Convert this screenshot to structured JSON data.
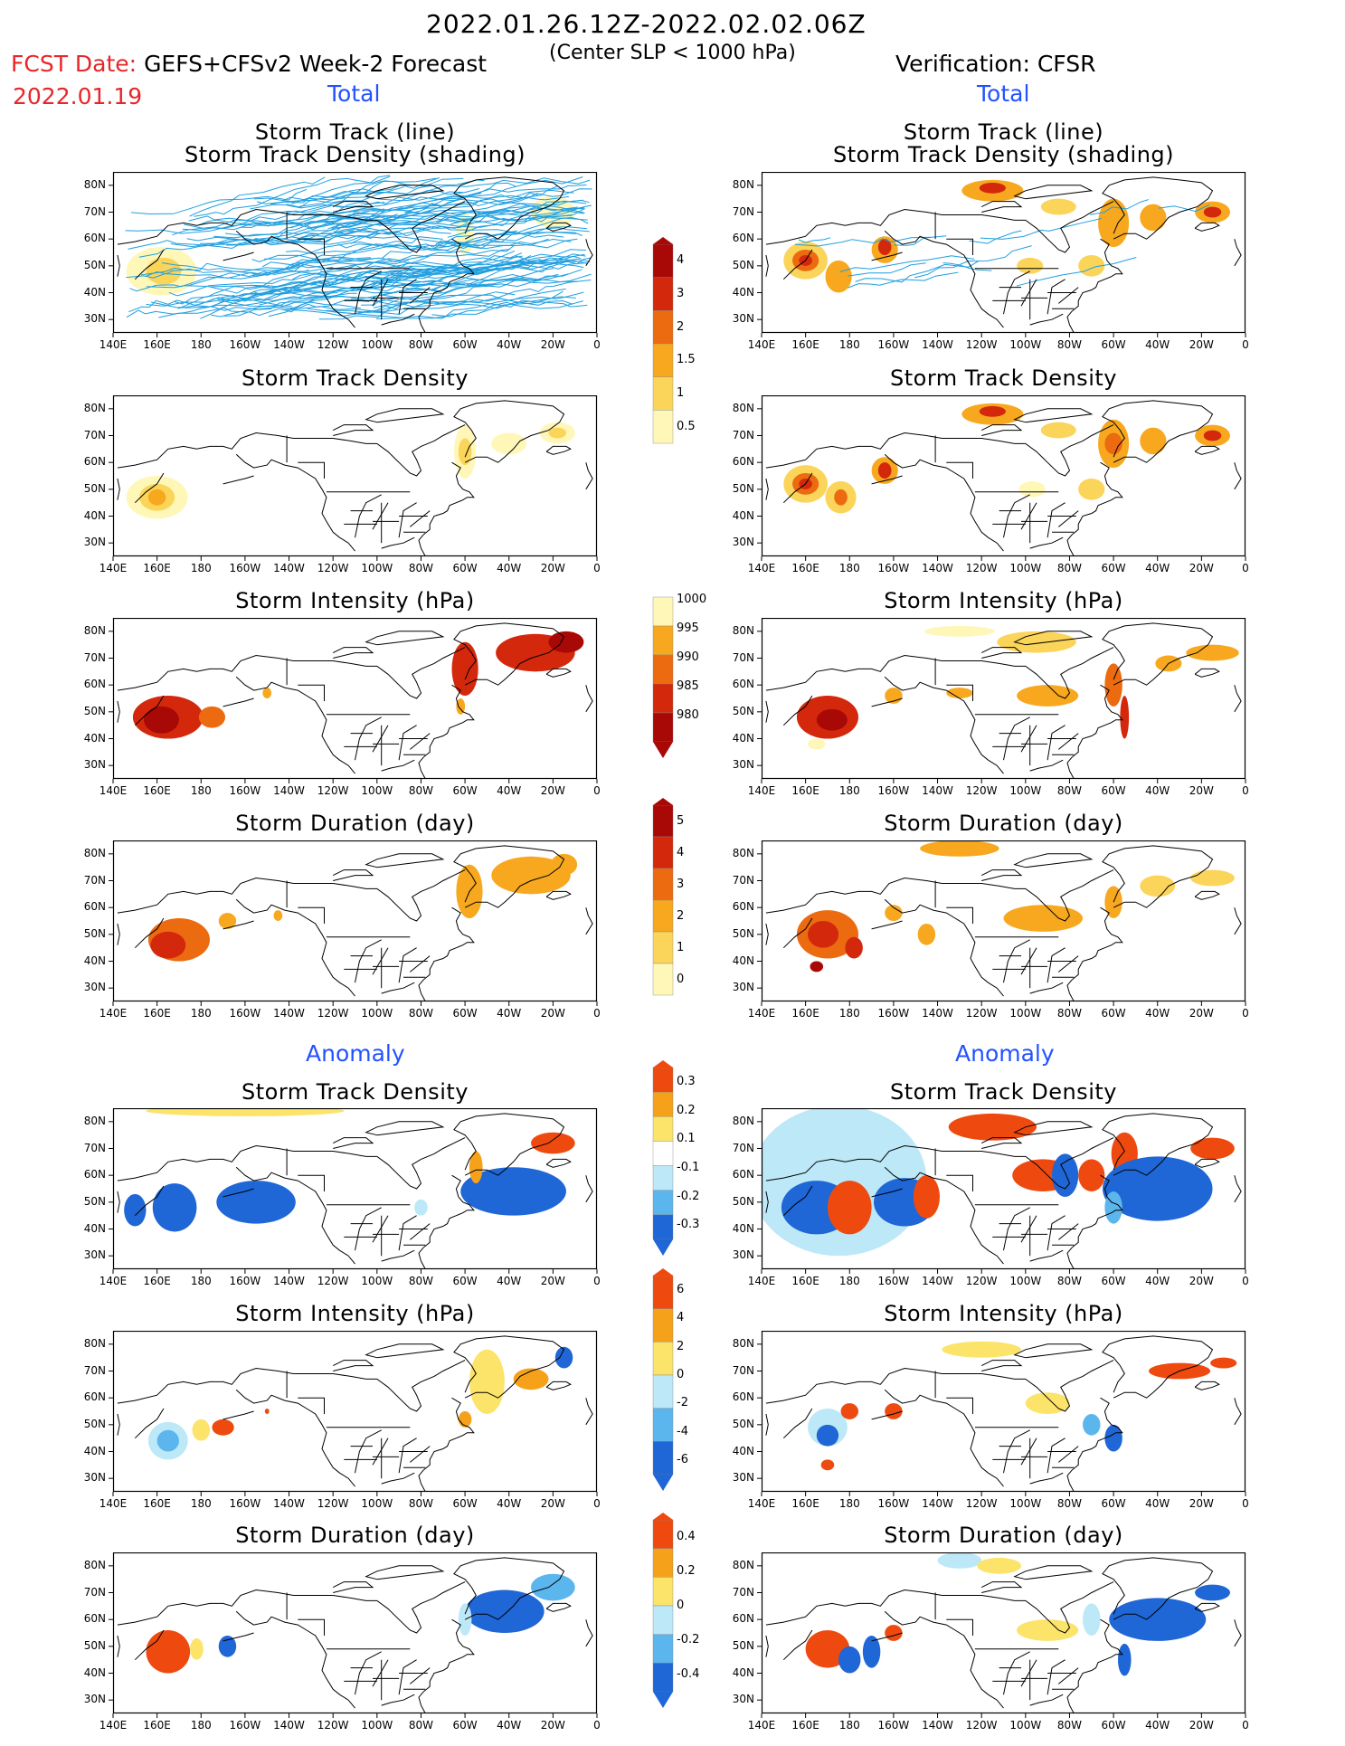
{
  "header": {
    "period": "2022.01.26.12Z-2022.02.02.06Z",
    "fcst_label": "FCST Date:",
    "fcst_desc": "GEFS+CFSv2 Week-2 Forecast",
    "center_slp": "(Center SLP < 1000 hPa)",
    "fcst_date": "2022.01.19",
    "verification": "Verification: CFSR",
    "total_left": "Total",
    "total_right": "Total",
    "anomaly_left": "Anomaly",
    "anomaly_right": "Anomaly"
  },
  "titles": {
    "track_line": "Storm Track (line)",
    "track_shading": "Storm Track Density (shading)",
    "density": "Storm Track Density",
    "intensity": "Storm Intensity (hPa)",
    "duration": "Storm Duration (day)"
  },
  "colors": {
    "track_line": "#1f9fe0",
    "shade_ramp": [
      "#fff7b8",
      "#fbd45a",
      "#f7a81e",
      "#ec6a10",
      "#d3280c",
      "#a80806"
    ],
    "anom_pos": [
      "#fce36a",
      "#f5a21a",
      "#ee4a10"
    ],
    "anom_neg": [
      "#bce8f7",
      "#5cb6ee",
      "#1f66d6"
    ]
  },
  "colorbars": [
    {
      "name": "total-density-colorbar",
      "labels": [
        "4",
        "3",
        "2",
        "1.5",
        "1",
        "0.5"
      ]
    },
    {
      "name": "total-intensity-colorbar",
      "labels": [
        "1000",
        "995",
        "990",
        "985",
        "980"
      ]
    },
    {
      "name": "total-duration-colorbar",
      "labels": [
        "5",
        "4",
        "3",
        "2",
        "1",
        "0"
      ]
    },
    {
      "name": "anomaly-density-colorbar",
      "labels": [
        "0.3",
        "0.2",
        "0.1",
        "-0.1",
        "-0.2",
        "-0.3"
      ]
    },
    {
      "name": "anomaly-intensity-colorbar",
      "labels": [
        "6",
        "4",
        "2",
        "0",
        "-2",
        "-4",
        "-6"
      ]
    },
    {
      "name": "anomaly-duration-colorbar",
      "labels": [
        "0.4",
        "0.2",
        "0",
        "-0.2",
        "-0.4"
      ]
    }
  ],
  "axes": {
    "x_ticks": [
      "140E",
      "160E",
      "180",
      "160W",
      "140W",
      "120W",
      "100W",
      "80W",
      "60W",
      "40W",
      "20W",
      "0"
    ],
    "y_ticks": [
      "80N",
      "70N",
      "60N",
      "50N",
      "40N",
      "30N"
    ]
  },
  "chart_data": [
    {
      "type": "heatmap",
      "title": "Storm Track (line) / Storm Track Density (shading)",
      "panel": "forecast-total",
      "lon_range": [
        140,
        360
      ],
      "lat_range": [
        25,
        85
      ]
    },
    {
      "type": "heatmap",
      "title": "Storm Track (line) / Storm Track Density (shading)",
      "panel": "verification-total",
      "lon_range": [
        140,
        360
      ],
      "lat_range": [
        25,
        85
      ]
    },
    {
      "type": "heatmap",
      "title": "Storm Track Density",
      "panel": "forecast-total",
      "scale": [
        0.5,
        1,
        1.5,
        2,
        3,
        4
      ]
    },
    {
      "type": "heatmap",
      "title": "Storm Track Density",
      "panel": "verification-total",
      "scale": [
        0.5,
        1,
        1.5,
        2,
        3,
        4
      ]
    },
    {
      "type": "heatmap",
      "title": "Storm Intensity (hPa)",
      "panel": "forecast-total",
      "scale": [
        980,
        985,
        990,
        995,
        1000
      ]
    },
    {
      "type": "heatmap",
      "title": "Storm Intensity (hPa)",
      "panel": "verification-total",
      "scale": [
        980,
        985,
        990,
        995,
        1000
      ]
    },
    {
      "type": "heatmap",
      "title": "Storm Duration (day)",
      "panel": "forecast-total",
      "scale": [
        0,
        1,
        2,
        3,
        4,
        5
      ]
    },
    {
      "type": "heatmap",
      "title": "Storm Duration (day)",
      "panel": "verification-total",
      "scale": [
        0,
        1,
        2,
        3,
        4,
        5
      ]
    },
    {
      "type": "heatmap",
      "title": "Storm Track Density",
      "panel": "forecast-anomaly",
      "scale": [
        -0.3,
        -0.2,
        -0.1,
        0.1,
        0.2,
        0.3
      ]
    },
    {
      "type": "heatmap",
      "title": "Storm Track Density",
      "panel": "verification-anomaly",
      "scale": [
        -0.3,
        -0.2,
        -0.1,
        0.1,
        0.2,
        0.3
      ]
    },
    {
      "type": "heatmap",
      "title": "Storm Intensity (hPa)",
      "panel": "forecast-anomaly",
      "scale": [
        -6,
        -4,
        -2,
        0,
        2,
        4,
        6
      ]
    },
    {
      "type": "heatmap",
      "title": "Storm Intensity (hPa)",
      "panel": "verification-anomaly",
      "scale": [
        -6,
        -4,
        -2,
        0,
        2,
        4,
        6
      ]
    },
    {
      "type": "heatmap",
      "title": "Storm Duration (day)",
      "panel": "forecast-anomaly",
      "scale": [
        -0.4,
        -0.2,
        0,
        0.2,
        0.4
      ]
    },
    {
      "type": "heatmap",
      "title": "Storm Duration (day)",
      "panel": "verification-anomaly",
      "scale": [
        -0.4,
        -0.2,
        0,
        0.2,
        0.4
      ]
    }
  ]
}
